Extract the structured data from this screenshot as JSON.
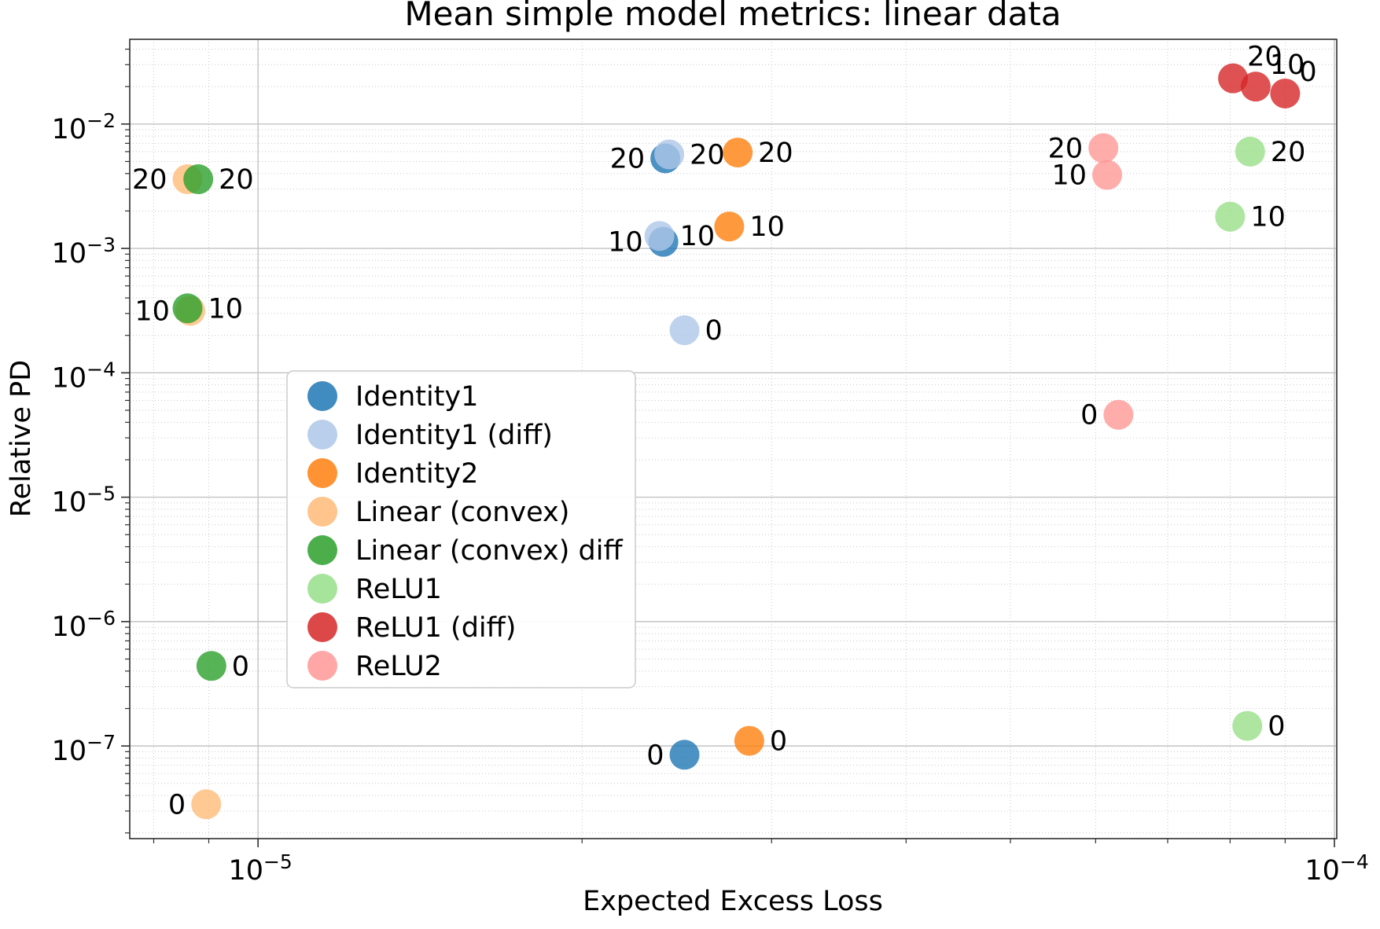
{
  "chart_data": {
    "type": "scatter",
    "title": "Mean simple model metrics: linear data",
    "xlabel": "Expected Excess Loss",
    "ylabel": "Relative PD",
    "x_scale": "log",
    "y_scale": "log",
    "xlim": [
      7.6e-06,
      0.0001005
    ],
    "ylim": [
      1.8e-08,
      0.048
    ],
    "grid": true,
    "legend_position": "center-left-inside",
    "x_major_ticks": [
      {
        "value": 1e-05,
        "mantissa": "10",
        "exponent": "−5"
      },
      {
        "value": 0.0001,
        "mantissa": "10",
        "exponent": "−4"
      }
    ],
    "y_major_ticks": [
      {
        "value": 0.01,
        "mantissa": "10",
        "exponent": "−2"
      },
      {
        "value": 0.001,
        "mantissa": "10",
        "exponent": "−3"
      },
      {
        "value": 0.0001,
        "mantissa": "10",
        "exponent": "−4"
      },
      {
        "value": 1e-05,
        "mantissa": "10",
        "exponent": "−5"
      },
      {
        "value": 1e-06,
        "mantissa": "10",
        "exponent": "−6"
      },
      {
        "value": 1e-07,
        "mantissa": "10",
        "exponent": "−7"
      }
    ],
    "series": [
      {
        "name": "Identity1",
        "color": "#1f77b4",
        "label_side": "left",
        "points": [
          {
            "x": 2.39e-05,
            "y": 0.0053,
            "label": "20"
          },
          {
            "x": 2.38e-05,
            "y": 0.00113,
            "label": "10"
          },
          {
            "x": 2.49e-05,
            "y": 8.5e-08,
            "label": "0"
          }
        ]
      },
      {
        "name": "Identity1 (diff)",
        "color": "#aec7e8",
        "label_side": "right",
        "points": [
          {
            "x": 2.41e-05,
            "y": 0.0057,
            "label": "20"
          },
          {
            "x": 2.36e-05,
            "y": 0.00126,
            "label": "10"
          },
          {
            "x": 2.49e-05,
            "y": 0.00022,
            "label": "0"
          }
        ]
      },
      {
        "name": "Identity2",
        "color": "#ff7f0e",
        "label_side": "right",
        "points": [
          {
            "x": 2.79e-05,
            "y": 0.0059,
            "label": "20"
          },
          {
            "x": 2.74e-05,
            "y": 0.0015,
            "label": "10"
          },
          {
            "x": 2.86e-05,
            "y": 1.1e-07,
            "label": "0"
          }
        ]
      },
      {
        "name": "Linear (convex)",
        "color": "#ffbb78",
        "label_side": "left",
        "points": [
          {
            "x": 8.6e-06,
            "y": 0.0036,
            "label": "20"
          },
          {
            "x": 8.65e-06,
            "y": 0.000315,
            "label": "10"
          },
          {
            "x": 8.95e-06,
            "y": 3.4e-08,
            "label": "0"
          }
        ]
      },
      {
        "name": "Linear (convex) diff",
        "color": "#2ca02c",
        "label_side": "right",
        "points": [
          {
            "x": 8.8e-06,
            "y": 0.0036,
            "label": "20"
          },
          {
            "x": 8.6e-06,
            "y": 0.00033,
            "label": "10"
          },
          {
            "x": 9.05e-06,
            "y": 4.4e-07,
            "label": "0"
          }
        ]
      },
      {
        "name": "ReLU1",
        "color": "#98df8a",
        "label_side": "right",
        "points": [
          {
            "x": 8.35e-05,
            "y": 0.006,
            "label": "20"
          },
          {
            "x": 8e-05,
            "y": 0.0018,
            "label": "10"
          },
          {
            "x": 8.3e-05,
            "y": 1.45e-07,
            "label": "0"
          }
        ]
      },
      {
        "name": "ReLU1 (diff)",
        "color": "#d62728",
        "label_side": "upright",
        "points": [
          {
            "x": 8.05e-05,
            "y": 0.0233,
            "label": "20"
          },
          {
            "x": 8.45e-05,
            "y": 0.02,
            "label": "10"
          },
          {
            "x": 9e-05,
            "y": 0.0176,
            "label": "0"
          }
        ]
      },
      {
        "name": "ReLU2",
        "color": "#ff9896",
        "label_side": "left",
        "points": [
          {
            "x": 6.1e-05,
            "y": 0.0064,
            "label": "20"
          },
          {
            "x": 6.15e-05,
            "y": 0.0039,
            "label": "10"
          },
          {
            "x": 6.3e-05,
            "y": 4.6e-05,
            "label": "0"
          }
        ]
      }
    ]
  }
}
